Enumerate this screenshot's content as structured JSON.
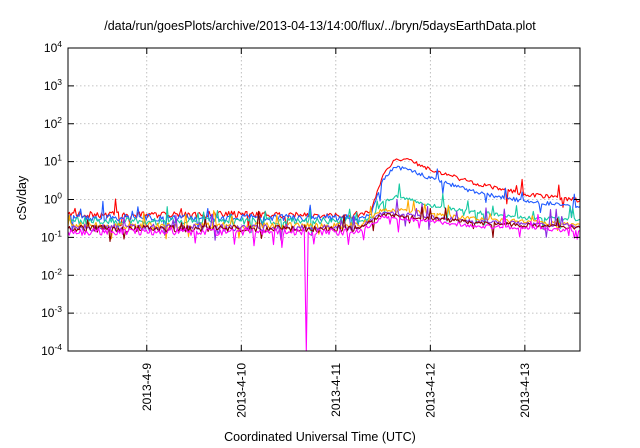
{
  "chart_data": {
    "type": "line",
    "title": "/data/run/goesPlots/archive/2013-04-13/14:00/flux/../bryn/5daysEarthData.plot",
    "xlabel": "Coordinated Universal Time (UTC)",
    "ylabel": "cSv/day",
    "x_range": [
      "2013-04-08 04:00",
      "2013-04-13 14:00"
    ],
    "ylim": [
      0.0001,
      10000
    ],
    "yscale": "log",
    "grid": true,
    "x_ticks": [
      "2013-4-9",
      "2013-4-10",
      "2013-4-11",
      "2013-4-12",
      "2013-4-13"
    ],
    "y_ticks": [
      {
        "base": "10",
        "exp": "-4"
      },
      {
        "base": "10",
        "exp": "-3"
      },
      {
        "base": "10",
        "exp": "-2"
      },
      {
        "base": "10",
        "exp": "-1"
      },
      {
        "base": "10",
        "exp": "0"
      },
      {
        "base": "10",
        "exp": "1"
      },
      {
        "base": "10",
        "exp": "2"
      },
      {
        "base": "10",
        "exp": "3"
      },
      {
        "base": "10",
        "exp": "4"
      }
    ],
    "series": [
      {
        "color": "#ff0000",
        "x": [
          "2013-04-08 04:00",
          "2013-04-10 00:00",
          "2013-04-11 06:00",
          "2013-04-11 09:00",
          "2013-04-11 12:00",
          "2013-04-11 15:00",
          "2013-04-11 18:00",
          "2013-04-12 00:00",
          "2013-04-12 12:00",
          "2013-04-13 00:00",
          "2013-04-13 14:00"
        ],
        "y": [
          0.4,
          0.4,
          0.4,
          0.5,
          4.5,
          11,
          12,
          6,
          2.6,
          1.4,
          0.95
        ]
      },
      {
        "color": "#1f5aff",
        "x": [
          "2013-04-08 04:00",
          "2013-04-10 00:00",
          "2013-04-11 06:00",
          "2013-04-11 09:00",
          "2013-04-11 12:00",
          "2013-04-11 15:00",
          "2013-04-11 18:00",
          "2013-04-12 00:00",
          "2013-04-12 12:00",
          "2013-04-13 00:00",
          "2013-04-13 14:00"
        ],
        "y": [
          0.33,
          0.33,
          0.33,
          0.4,
          3.5,
          7,
          6.5,
          3.6,
          1.5,
          0.9,
          0.65
        ]
      },
      {
        "color": "#17c9a2",
        "x": [
          "2013-04-08 04:00",
          "2013-04-10 00:00",
          "2013-04-11 06:00",
          "2013-04-11 09:00",
          "2013-04-11 12:00",
          "2013-04-11 15:00",
          "2013-04-11 18:00",
          "2013-04-12 00:00",
          "2013-04-12 12:00",
          "2013-04-13 00:00",
          "2013-04-13 14:00"
        ],
        "y": [
          0.27,
          0.27,
          0.27,
          0.32,
          0.9,
          1.2,
          1.1,
          0.7,
          0.45,
          0.33,
          0.3
        ]
      },
      {
        "color": "#ffaa00",
        "x": [
          "2013-04-08 04:00",
          "2013-04-11 06:00",
          "2013-04-11 12:00",
          "2013-04-11 18:00",
          "2013-04-12 12:00",
          "2013-04-13 14:00"
        ],
        "y": [
          0.2,
          0.2,
          0.55,
          0.5,
          0.3,
          0.22
        ]
      },
      {
        "color": "#8a2be2",
        "x": [
          "2013-04-08 04:00",
          "2013-04-11 06:00",
          "2013-04-11 12:00",
          "2013-04-11 18:00",
          "2013-04-12 12:00",
          "2013-04-13 14:00"
        ],
        "y": [
          0.18,
          0.18,
          0.45,
          0.4,
          0.26,
          0.2
        ]
      },
      {
        "color": "#8b0000",
        "x": [
          "2013-04-08 04:00",
          "2013-04-11 06:00",
          "2013-04-11 12:00",
          "2013-04-11 18:00",
          "2013-04-12 12:00",
          "2013-04-13 14:00"
        ],
        "y": [
          0.17,
          0.17,
          0.4,
          0.36,
          0.24,
          0.18
        ]
      },
      {
        "color": "#ff00ff",
        "x": [
          "2013-04-08 04:00",
          "2013-04-10 16:00",
          "2013-04-10 16:30",
          "2013-04-10 17:00",
          "2013-04-11 06:00",
          "2013-04-11 12:00",
          "2013-04-11 18:00",
          "2013-04-12 12:00",
          "2013-04-13 14:00"
        ],
        "y": [
          0.14,
          0.14,
          0.0001,
          0.14,
          0.14,
          0.35,
          0.3,
          0.2,
          0.15
        ]
      }
    ]
  }
}
